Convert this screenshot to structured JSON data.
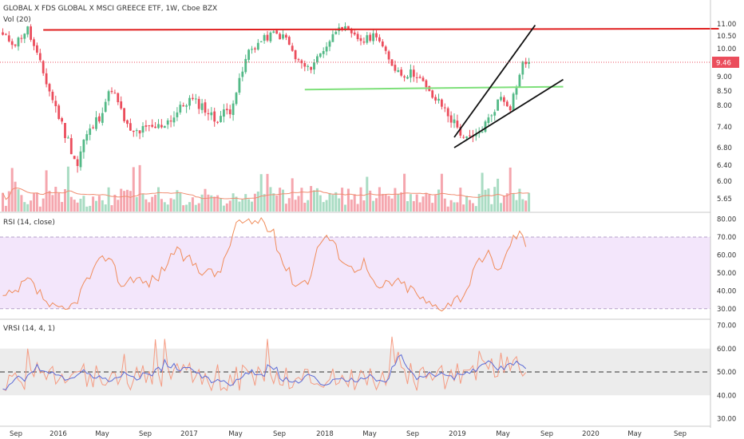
{
  "header": {
    "title": "GLOBAL X FDS GLOBAL X MSCI GREECE ETF, 1W, Cboe BZX",
    "volume_label": "Vol (20)",
    "last_price": "9.46"
  },
  "panes": {
    "rsi_label": "RSI (14, close)",
    "vrsi_label": "VRSI (14, 4, 1)"
  },
  "colors": {
    "up": "#53b987",
    "down": "#eb4d5c",
    "vol_up": "#a9dcc3",
    "vol_down": "#f5a6ae",
    "ma": "#f08c70",
    "rsi_line": "#f08c5a",
    "rsi_band": "#f3e6fb",
    "vrsi_line": "#f59b82",
    "vrsi_signal": "#5b6ad6",
    "resistance": "#e02020",
    "support": "#7ee07a",
    "wedge": "#111111",
    "price_label_bg": "#eb4d5c"
  },
  "chart_data": [
    {
      "type": "candlestick",
      "title": "GLOBAL X FDS GLOBAL X MSCI GREECE ETF, 1W, Cboe BZX",
      "x_labels": [
        "Sep",
        "2016",
        "May",
        "Sep",
        "2017",
        "May",
        "Sep",
        "2018",
        "May",
        "Sep",
        "2019",
        "May",
        "Sep",
        "2020",
        "May",
        "Sep"
      ],
      "y_ticks": [
        "11.00",
        "10.50",
        "10.00",
        "9.46",
        "9.00",
        "8.50",
        "8.00",
        "7.40",
        "6.80",
        "6.40",
        "6.00",
        "5.65"
      ],
      "ylim": [
        5.5,
        11.2
      ],
      "close_keypoints": [
        [
          0,
          10.5
        ],
        [
          4,
          10.2
        ],
        [
          8,
          10.8
        ],
        [
          9,
          10.4
        ],
        [
          12,
          9.4
        ],
        [
          16,
          8.2
        ],
        [
          20,
          7.2
        ],
        [
          24,
          6.4
        ],
        [
          26,
          7.0
        ],
        [
          31,
          7.7
        ],
        [
          35,
          8.6
        ],
        [
          38,
          7.8
        ],
        [
          41,
          7.2
        ],
        [
          45,
          7.3
        ],
        [
          50,
          7.4
        ],
        [
          55,
          7.7
        ],
        [
          60,
          8.2
        ],
        [
          64,
          8.0
        ],
        [
          68,
          7.6
        ],
        [
          73,
          7.9
        ],
        [
          76,
          8.8
        ],
        [
          79,
          9.9
        ],
        [
          83,
          10.3
        ],
        [
          87,
          10.6
        ],
        [
          91,
          10.4
        ],
        [
          94,
          9.6
        ],
        [
          98,
          9.2
        ],
        [
          102,
          9.8
        ],
        [
          106,
          10.5
        ],
        [
          108,
          11.0
        ],
        [
          112,
          10.5
        ],
        [
          116,
          10.3
        ],
        [
          120,
          10.6
        ],
        [
          124,
          9.5
        ],
        [
          128,
          9.1
        ],
        [
          133,
          9.1
        ],
        [
          137,
          8.4
        ],
        [
          141,
          8.0
        ],
        [
          145,
          7.5
        ],
        [
          149,
          7.0
        ],
        [
          152,
          7.1
        ],
        [
          156,
          7.6
        ],
        [
          160,
          8.3
        ],
        [
          163,
          8.0
        ],
        [
          167,
          9.4
        ],
        [
          169,
          9.46
        ]
      ],
      "last_price": 9.46,
      "drawings": [
        {
          "kind": "horizontal",
          "name": "resistance",
          "color": "#e02020",
          "from": [
            13,
            10.75
          ],
          "to": [
            230,
            10.8
          ]
        },
        {
          "kind": "horizontal",
          "name": "support",
          "color": "#7ee07a",
          "from": [
            97,
            8.55
          ],
          "to": [
            180,
            8.65
          ]
        },
        {
          "kind": "trend",
          "name": "wedge-upper",
          "color": "#111111",
          "from": [
            145,
            7.1
          ],
          "to": [
            171,
            10.95
          ]
        },
        {
          "kind": "trend",
          "name": "wedge-lower",
          "color": "#111111",
          "from": [
            145,
            6.8
          ],
          "to": [
            180,
            8.9
          ]
        }
      ]
    },
    {
      "type": "bar",
      "title": "Vol (20)",
      "note": "weekly volume with 20-period moving average"
    },
    {
      "type": "line",
      "title": "RSI (14, close)",
      "y_ticks": [
        "80.00",
        "70.00",
        "60.00",
        "50.00",
        "40.00",
        "30.00"
      ],
      "ylim": [
        25,
        82
      ],
      "band": [
        30,
        70
      ],
      "keypoints": [
        [
          0,
          36
        ],
        [
          4,
          38
        ],
        [
          8,
          46
        ],
        [
          11,
          40
        ],
        [
          16,
          30
        ],
        [
          20,
          28
        ],
        [
          23,
          33
        ],
        [
          27,
          46
        ],
        [
          31,
          55
        ],
        [
          34,
          61
        ],
        [
          38,
          43
        ],
        [
          42,
          48
        ],
        [
          46,
          44
        ],
        [
          50,
          48
        ],
        [
          55,
          62
        ],
        [
          60,
          57
        ],
        [
          64,
          52
        ],
        [
          68,
          49
        ],
        [
          71,
          55
        ],
        [
          75,
          78
        ],
        [
          79,
          77
        ],
        [
          83,
          80
        ],
        [
          87,
          71
        ],
        [
          90,
          56
        ],
        [
          94,
          44
        ],
        [
          98,
          46
        ],
        [
          102,
          68
        ],
        [
          104,
          71
        ],
        [
          108,
          61
        ],
        [
          112,
          52
        ],
        [
          116,
          56
        ],
        [
          120,
          40
        ],
        [
          124,
          45
        ],
        [
          128,
          44
        ],
        [
          132,
          40
        ],
        [
          136,
          33
        ],
        [
          140,
          31
        ],
        [
          144,
          34
        ],
        [
          148,
          38
        ],
        [
          152,
          53
        ],
        [
          156,
          60
        ],
        [
          160,
          51
        ],
        [
          163,
          67
        ],
        [
          166,
          73
        ],
        [
          168,
          64
        ]
      ]
    },
    {
      "type": "line",
      "title": "VRSI (14, 4, 1)",
      "y_ticks": [
        "70.00",
        "60.00",
        "50.00",
        "40.00",
        "30.00"
      ],
      "ylim": [
        27,
        72
      ],
      "band": [
        40,
        60
      ],
      "dashed_level": 50
    }
  ]
}
